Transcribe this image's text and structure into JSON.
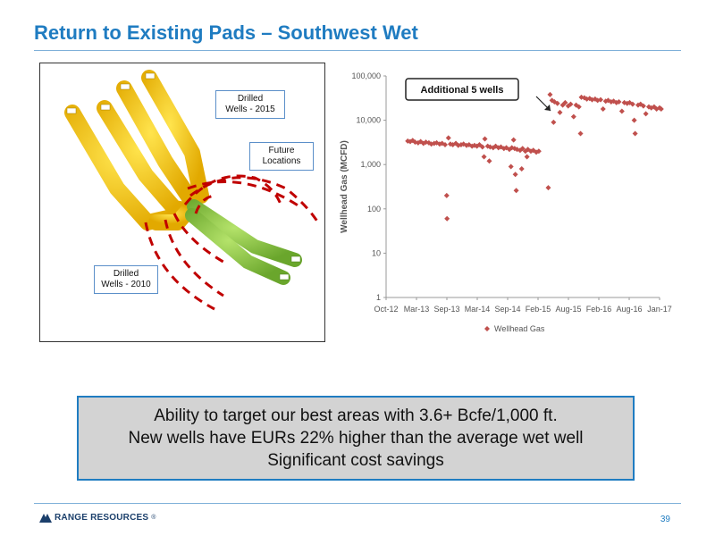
{
  "slide": {
    "title": "Return to Existing Pads – Southwest Wet",
    "page_number": "39"
  },
  "map": {
    "callouts": {
      "drilled_2015": [
        "Drilled",
        "Wells - 2015"
      ],
      "future": [
        "Future",
        "Locations"
      ],
      "drilled_2010": [
        "Drilled",
        "Wells - 2010"
      ]
    },
    "colors": {
      "wells_2015": "#f2c300",
      "wells_2010": "#8cc63f",
      "future": "#c00000"
    }
  },
  "chart_data": {
    "type": "scatter",
    "title": "",
    "xlabel": "",
    "ylabel": "Wellhead Gas (MCFD)",
    "yscale": "log",
    "ylim": [
      1,
      100000
    ],
    "ytick_labels": [
      "1",
      "10",
      "100",
      "1,000",
      "10,000",
      "100,000"
    ],
    "xtick_labels": [
      "Oct-12",
      "Mar-13",
      "Sep-13",
      "Mar-14",
      "Sep-14",
      "Feb-15",
      "Aug-15",
      "Feb-16",
      "Aug-16",
      "Jan-17"
    ],
    "legend": {
      "position": "bottom",
      "label": "Wellhead Gas"
    },
    "annotation": "Additional 5 wells",
    "color": "#c0504d",
    "series": [
      {
        "name": "Wellhead Gas",
        "points": [
          [
            "2013-02-01",
            3400
          ],
          [
            "2013-02-15",
            3300
          ],
          [
            "2013-03-01",
            3500
          ],
          [
            "2013-03-15",
            3200
          ],
          [
            "2013-04-01",
            3100
          ],
          [
            "2013-04-15",
            3300
          ],
          [
            "2013-05-01",
            3000
          ],
          [
            "2013-05-15",
            3200
          ],
          [
            "2013-06-01",
            3100
          ],
          [
            "2013-06-15",
            2900
          ],
          [
            "2013-07-01",
            3000
          ],
          [
            "2013-07-15",
            3100
          ],
          [
            "2013-08-01",
            2900
          ],
          [
            "2013-08-15",
            3000
          ],
          [
            "2013-09-01",
            2800
          ],
          [
            "2013-09-10",
            200
          ],
          [
            "2013-09-12",
            60
          ],
          [
            "2013-09-20",
            4000
          ],
          [
            "2013-10-01",
            2900
          ],
          [
            "2013-10-15",
            2800
          ],
          [
            "2013-11-01",
            3000
          ],
          [
            "2013-11-15",
            2700
          ],
          [
            "2013-12-01",
            2800
          ],
          [
            "2013-12-15",
            2900
          ],
          [
            "2014-01-01",
            2700
          ],
          [
            "2014-01-15",
            2800
          ],
          [
            "2014-02-01",
            2600
          ],
          [
            "2014-02-15",
            2700
          ],
          [
            "2014-03-01",
            2600
          ],
          [
            "2014-03-15",
            2800
          ],
          [
            "2014-04-01",
            2500
          ],
          [
            "2014-04-10",
            1500
          ],
          [
            "2014-04-15",
            3800
          ],
          [
            "2014-05-01",
            2600
          ],
          [
            "2014-05-10",
            1200
          ],
          [
            "2014-05-15",
            2500
          ],
          [
            "2014-06-01",
            2400
          ],
          [
            "2014-06-15",
            2600
          ],
          [
            "2014-07-01",
            2400
          ],
          [
            "2014-07-15",
            2500
          ],
          [
            "2014-08-01",
            2300
          ],
          [
            "2014-08-15",
            2400
          ],
          [
            "2014-09-01",
            2200
          ],
          [
            "2014-09-10",
            900
          ],
          [
            "2014-09-15",
            2400
          ],
          [
            "2014-09-25",
            3600
          ],
          [
            "2014-10-01",
            2300
          ],
          [
            "2014-10-05",
            600
          ],
          [
            "2014-10-10",
            260
          ],
          [
            "2014-10-15",
            2200
          ],
          [
            "2014-11-01",
            2100
          ],
          [
            "2014-11-10",
            800
          ],
          [
            "2014-11-15",
            2300
          ],
          [
            "2014-12-01",
            2000
          ],
          [
            "2014-12-10",
            1500
          ],
          [
            "2014-12-15",
            2200
          ],
          [
            "2015-01-01",
            2000
          ],
          [
            "2015-01-15",
            2100
          ],
          [
            "2015-02-01",
            1900
          ],
          [
            "2015-02-15",
            2000
          ],
          [
            "2015-04-10",
            300
          ],
          [
            "2015-04-20",
            38000
          ],
          [
            "2015-05-01",
            28000
          ],
          [
            "2015-05-10",
            9000
          ],
          [
            "2015-05-15",
            26000
          ],
          [
            "2015-06-01",
            24000
          ],
          [
            "2015-06-15",
            15000
          ],
          [
            "2015-07-01",
            22000
          ],
          [
            "2015-07-15",
            25000
          ],
          [
            "2015-08-01",
            21000
          ],
          [
            "2015-08-15",
            23000
          ],
          [
            "2015-09-01",
            12000
          ],
          [
            "2015-09-15",
            22000
          ],
          [
            "2015-10-01",
            20000
          ],
          [
            "2015-10-10",
            5000
          ],
          [
            "2015-10-15",
            33000
          ],
          [
            "2015-11-01",
            32000
          ],
          [
            "2015-11-15",
            30000
          ],
          [
            "2015-12-01",
            31000
          ],
          [
            "2015-12-15",
            29000
          ],
          [
            "2016-01-01",
            30000
          ],
          [
            "2016-01-15",
            28000
          ],
          [
            "2016-02-01",
            29000
          ],
          [
            "2016-02-15",
            18000
          ],
          [
            "2016-03-01",
            27000
          ],
          [
            "2016-03-15",
            28000
          ],
          [
            "2016-04-01",
            26000
          ],
          [
            "2016-04-15",
            27000
          ],
          [
            "2016-05-01",
            25000
          ],
          [
            "2016-05-15",
            26000
          ],
          [
            "2016-06-01",
            16000
          ],
          [
            "2016-06-15",
            25000
          ],
          [
            "2016-07-01",
            24000
          ],
          [
            "2016-07-15",
            25000
          ],
          [
            "2016-08-01",
            23000
          ],
          [
            "2016-08-10",
            10000
          ],
          [
            "2016-08-15",
            5000
          ],
          [
            "2016-09-01",
            22000
          ],
          [
            "2016-09-15",
            23000
          ],
          [
            "2016-10-01",
            21000
          ],
          [
            "2016-10-15",
            14000
          ],
          [
            "2016-11-01",
            20000
          ],
          [
            "2016-11-15",
            19000
          ],
          [
            "2016-12-01",
            20000
          ],
          [
            "2016-12-15",
            18000
          ],
          [
            "2017-01-01",
            19000
          ],
          [
            "2017-01-10",
            18000
          ]
        ]
      }
    ]
  },
  "summary": {
    "lines": [
      "Ability to target our best areas with 3.6+ Bcfe/1,000 ft.",
      "New wells have EURs 22% higher than the average wet well",
      "Significant cost savings"
    ]
  },
  "footer": {
    "logo_text": "RANGE RESOURCES",
    "logo_mark": "®"
  }
}
